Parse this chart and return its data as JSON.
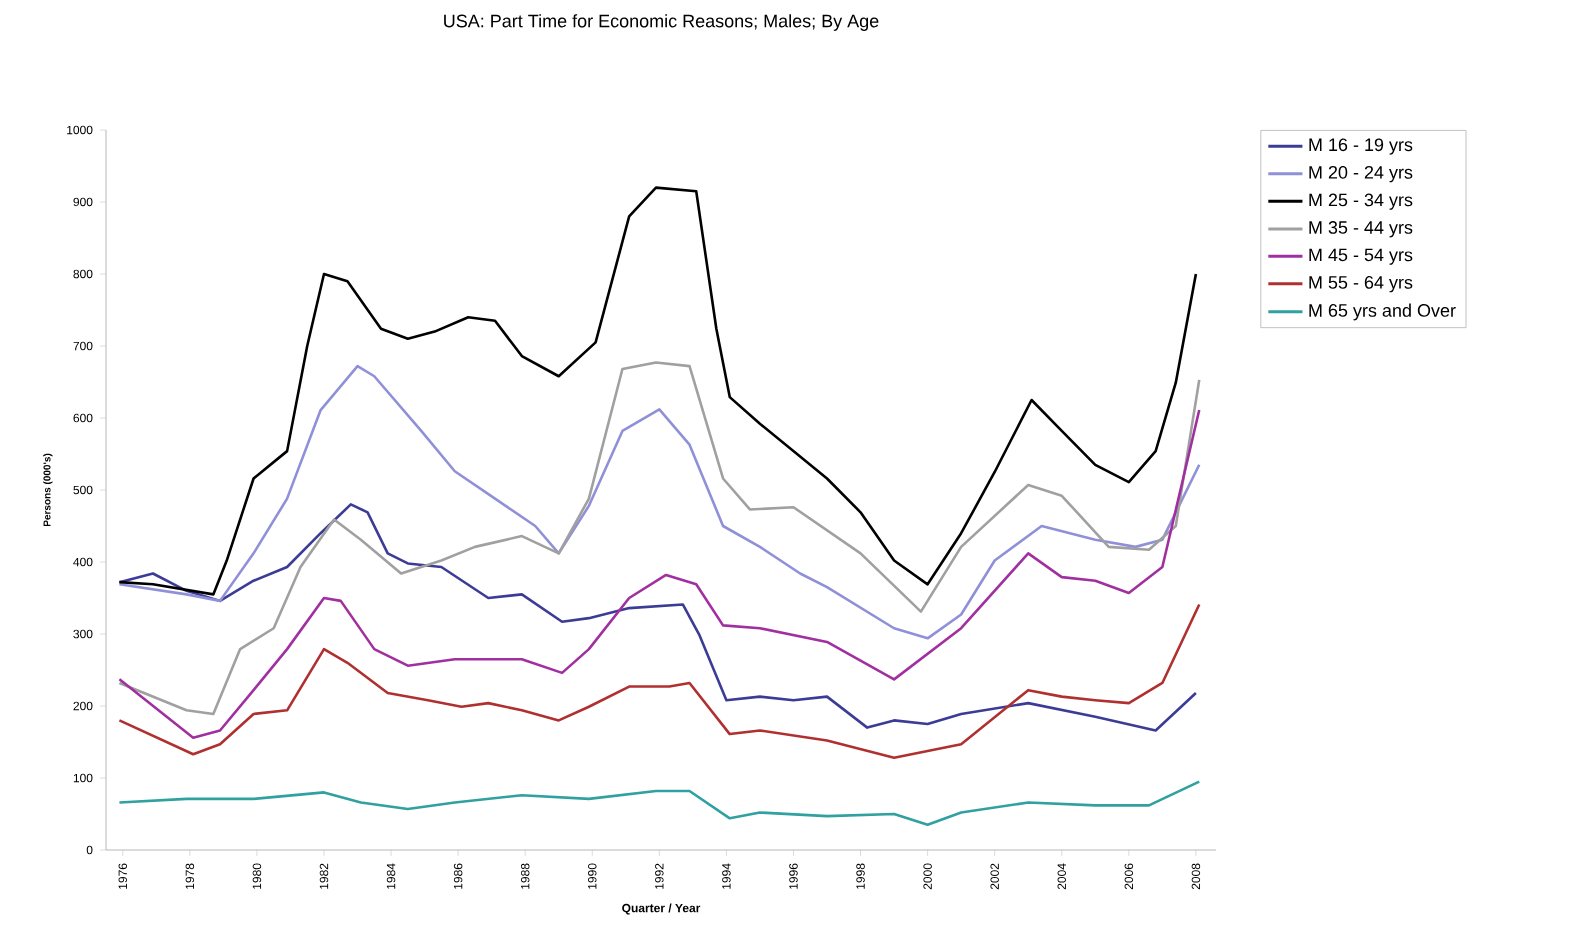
{
  "chart_data": {
    "type": "line",
    "title": "USA: Part Time for Economic Reasons; Males; By Age",
    "xlabel": "Quarter / Year",
    "ylabel": "Persons (000's)",
    "xlim": [
      1975.5,
      2008.6
    ],
    "xticks": [
      1976,
      1978,
      1980,
      1982,
      1984,
      1986,
      1988,
      1990,
      1992,
      1994,
      1996,
      1998,
      2000,
      2002,
      2004,
      2006,
      2008
    ],
    "ylim": [
      0,
      1000
    ],
    "yticks": [
      0,
      100,
      200,
      300,
      400,
      500,
      600,
      700,
      800,
      900,
      1000
    ],
    "legend": "right",
    "grid": false,
    "marker": "none",
    "line_style": "solid",
    "series": [
      {
        "name": "M 16 - 19 yrs",
        "color": "#3c3c96",
        "x": [
          1975.9,
          1976.9,
          1977.9,
          1978.9,
          1979.9,
          1980.9,
          1981.9,
          1982.8,
          1983.3,
          1983.9,
          1984.5,
          1985.5,
          1986.9,
          1987.9,
          1989.1,
          1989.9,
          1991.1,
          1992.7,
          1993.2,
          1994.0,
          1995.0,
          1996.0,
          1997.0,
          1998.2,
          1999.0,
          2000.0,
          2001.0,
          2003.0,
          2005.0,
          2006.8,
          2008.0
        ],
        "values": [
          372,
          384,
          360,
          346,
          374,
          393,
          440,
          480,
          469,
          412,
          398,
          393,
          350,
          355,
          317,
          322,
          336,
          341,
          298,
          208,
          213,
          208,
          213,
          170,
          180,
          175,
          189,
          204,
          185,
          166,
          218
        ]
      },
      {
        "name": "M 20 - 24 yrs",
        "color": "#9090d8",
        "x": [
          1975.9,
          1977.9,
          1978.9,
          1979.9,
          1980.9,
          1981.9,
          1983.0,
          1983.5,
          1984.9,
          1985.9,
          1987.1,
          1988.3,
          1989.0,
          1989.9,
          1990.9,
          1992.0,
          1992.9,
          1993.9,
          1995.0,
          1996.2,
          1997.0,
          1999.0,
          2000.0,
          2001.0,
          2002.0,
          2003.4,
          2005.0,
          2006.2,
          2007.0,
          2008.1
        ],
        "values": [
          369,
          355,
          346,
          412,
          488,
          611,
          672,
          658,
          582,
          526,
          488,
          450,
          412,
          478,
          582,
          612,
          563,
          450,
          421,
          384,
          365,
          308,
          294,
          327,
          402,
          450,
          431,
          421,
          431,
          535
        ]
      },
      {
        "name": "M 25 - 34 yrs",
        "color": "#000000",
        "x": [
          1975.9,
          1976.9,
          1978.7,
          1979.1,
          1979.9,
          1980.9,
          1981.5,
          1982.0,
          1982.7,
          1983.7,
          1984.5,
          1985.3,
          1986.3,
          1987.1,
          1987.9,
          1989.0,
          1990.1,
          1991.1,
          1991.9,
          1993.1,
          1993.7,
          1994.1,
          1995.0,
          1997.0,
          1998.0,
          1999.0,
          2000.0,
          2001.0,
          2002.0,
          2003.1,
          2004.0,
          2005.0,
          2006.0,
          2006.8,
          2007.4,
          2008.0
        ],
        "values": [
          372,
          369,
          355,
          402,
          516,
          554,
          700,
          800,
          790,
          724,
          710,
          720,
          740,
          735,
          686,
          658,
          705,
          880,
          920,
          915,
          724,
          629,
          592,
          516,
          469,
          402,
          369,
          440,
          525,
          625,
          582,
          535,
          511,
          554,
          649,
          800
        ]
      },
      {
        "name": "M 35 - 44 yrs",
        "color": "#a0a0a0",
        "x": [
          1975.9,
          1977.9,
          1978.7,
          1979.5,
          1980.5,
          1981.3,
          1982.3,
          1983.1,
          1984.3,
          1985.5,
          1986.5,
          1987.9,
          1989.0,
          1989.9,
          1990.9,
          1991.9,
          1992.9,
          1993.9,
          1994.7,
          1996.0,
          1998.0,
          1999.8,
          2001.0,
          2003.0,
          2004.0,
          2005.4,
          2006.6,
          2007.4,
          2008.1
        ],
        "values": [
          232,
          194,
          189,
          279,
          308,
          393,
          459,
          431,
          384,
          402,
          421,
          436,
          412,
          488,
          668,
          677,
          672,
          516,
          473,
          476,
          412,
          331,
          421,
          507,
          492,
          421,
          417,
          450,
          653
        ]
      },
      {
        "name": "M 45 - 54 yrs",
        "color": "#a030a0",
        "x": [
          1975.9,
          1978.1,
          1978.9,
          1979.9,
          1980.9,
          1982.0,
          1982.5,
          1983.5,
          1984.5,
          1985.9,
          1987.1,
          1987.9,
          1989.1,
          1989.9,
          1991.1,
          1992.2,
          1993.1,
          1993.9,
          1995.0,
          1997.0,
          1999.0,
          2001.0,
          2003.0,
          2004.0,
          2005.0,
          2006.0,
          2007.0,
          2008.1
        ],
        "values": [
          237,
          156,
          166,
          222,
          279,
          350,
          346,
          279,
          256,
          265,
          265,
          265,
          246,
          279,
          350,
          382,
          369,
          312,
          308,
          289,
          237,
          308,
          412,
          379,
          374,
          357,
          393,
          611
        ]
      },
      {
        "name": "M 55 - 64 yrs",
        "color": "#b03030",
        "x": [
          1975.9,
          1978.1,
          1978.9,
          1979.9,
          1980.9,
          1982.0,
          1982.7,
          1983.9,
          1985.1,
          1986.1,
          1986.9,
          1987.9,
          1989.0,
          1989.9,
          1991.1,
          1992.3,
          1992.9,
          1994.1,
          1995.0,
          1997.0,
          1999.0,
          2001.0,
          2003.0,
          2004.0,
          2005.0,
          2006.0,
          2007.0,
          2008.1
        ],
        "values": [
          180,
          133,
          147,
          189,
          194,
          279,
          260,
          218,
          208,
          199,
          204,
          194,
          180,
          199,
          227,
          227,
          232,
          161,
          166,
          152,
          128,
          147,
          222,
          213,
          208,
          204,
          232,
          341
        ]
      },
      {
        "name": "M 65 yrs and Over",
        "color": "#30a0a0",
        "x": [
          1975.9,
          1977.9,
          1979.9,
          1982.0,
          1983.1,
          1984.5,
          1985.9,
          1987.9,
          1989.9,
          1991.9,
          1992.9,
          1994.1,
          1995.0,
          1997.0,
          1999.0,
          2000.0,
          2001.0,
          2003.0,
          2005.0,
          2006.6,
          2008.1
        ],
        "values": [
          66,
          71,
          71,
          80,
          66,
          57,
          66,
          76,
          71,
          82,
          82,
          44,
          52,
          47,
          50,
          35,
          52,
          66,
          62,
          62,
          95
        ]
      }
    ]
  }
}
